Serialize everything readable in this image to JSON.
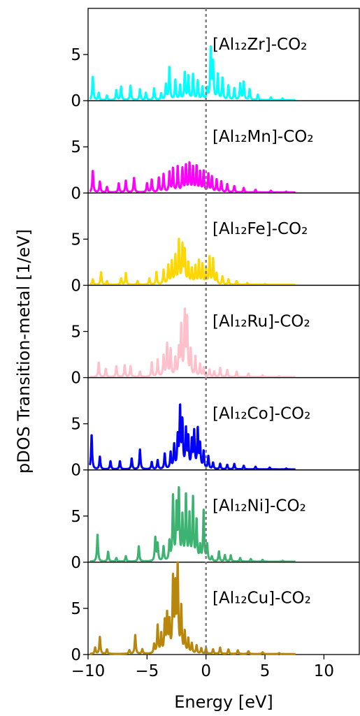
{
  "chart_data": {
    "type": "line",
    "xlabel": "Energy [eV]",
    "ylabel": "pDOS Transition-metal [1/eV]",
    "xlim": [
      -10,
      13
    ],
    "ylim": [
      0,
      10
    ],
    "x_ticks": [
      -10,
      -5,
      0,
      5,
      10
    ],
    "x_tick_labels": [
      "−10",
      "−5",
      "0",
      "5",
      "10"
    ],
    "y_ticks": [
      0,
      5
    ],
    "y_tick_labels": [
      "0",
      "5"
    ],
    "fermi_level": 0,
    "panels": [
      {
        "label": "[Al₁₂Zr]-CO₂",
        "color": "#00ffff",
        "peaks": [
          [
            -9.6,
            2.6
          ],
          [
            -9.1,
            0.8
          ],
          [
            -8.4,
            0.5
          ],
          [
            -7.6,
            1.1
          ],
          [
            -7.2,
            1.5
          ],
          [
            -6.4,
            1.6
          ],
          [
            -5.6,
            1.2
          ],
          [
            -5.1,
            0.8
          ],
          [
            -4.4,
            1.3
          ],
          [
            -3.8,
            0.7
          ],
          [
            -3.4,
            1.7
          ],
          [
            -3.1,
            3.6
          ],
          [
            -2.6,
            2.2
          ],
          [
            -2.2,
            1.6
          ],
          [
            -1.8,
            3.0
          ],
          [
            -1.5,
            2.6
          ],
          [
            -1.1,
            2.8
          ],
          [
            -0.7,
            2.1
          ],
          [
            -0.3,
            1.4
          ],
          [
            0.1,
            1.2
          ],
          [
            0.4,
            5.6
          ],
          [
            0.6,
            4.0
          ],
          [
            1.0,
            2.8
          ],
          [
            1.4,
            2.4
          ],
          [
            1.9,
            1.6
          ],
          [
            2.4,
            1.3
          ],
          [
            2.9,
            1.8
          ],
          [
            3.2,
            2.0
          ],
          [
            3.7,
            1.2
          ],
          [
            4.4,
            0.6
          ],
          [
            5.5,
            0.3
          ],
          [
            6.5,
            0.2
          ]
        ]
      },
      {
        "label": "[Al₁₂Mn]-CO₂",
        "color": "#ff00ff",
        "peaks": [
          [
            -9.6,
            2.4
          ],
          [
            -9.0,
            1.2
          ],
          [
            -8.4,
            0.6
          ],
          [
            -7.4,
            1.0
          ],
          [
            -6.8,
            1.3
          ],
          [
            -6.1,
            1.6
          ],
          [
            -5.0,
            1.0
          ],
          [
            -4.6,
            1.4
          ],
          [
            -4.0,
            1.6
          ],
          [
            -3.6,
            2.0
          ],
          [
            -3.1,
            2.2
          ],
          [
            -2.8,
            2.6
          ],
          [
            -2.4,
            2.8
          ],
          [
            -2.0,
            2.6
          ],
          [
            -1.7,
            2.9
          ],
          [
            -1.4,
            3.1
          ],
          [
            -1.1,
            2.7
          ],
          [
            -0.8,
            2.8
          ],
          [
            -0.5,
            2.2
          ],
          [
            -0.2,
            2.3
          ],
          [
            0.2,
            2.0
          ],
          [
            0.5,
            1.7
          ],
          [
            0.9,
            1.4
          ],
          [
            1.3,
            1.2
          ],
          [
            1.8,
            0.9
          ],
          [
            2.4,
            0.7
          ],
          [
            3.2,
            0.5
          ],
          [
            4.2,
            0.3
          ],
          [
            5.5,
            0.2
          ],
          [
            6.8,
            0.1
          ]
        ]
      },
      {
        "label": "[Al₁₂Fe]-CO₂",
        "color": "#ffd700",
        "peaks": [
          [
            -9.6,
            0.6
          ],
          [
            -8.9,
            1.4
          ],
          [
            -8.4,
            0.4
          ],
          [
            -7.2,
            0.7
          ],
          [
            -6.8,
            1.3
          ],
          [
            -5.8,
            0.4
          ],
          [
            -4.8,
            0.7
          ],
          [
            -4.2,
            1.4
          ],
          [
            -3.6,
            1.6
          ],
          [
            -3.2,
            2.1
          ],
          [
            -2.9,
            2.5
          ],
          [
            -2.6,
            3.1
          ],
          [
            -2.3,
            4.8
          ],
          [
            -2.0,
            4.2
          ],
          [
            -1.8,
            3.6
          ],
          [
            -1.5,
            2.3
          ],
          [
            -1.2,
            1.7
          ],
          [
            -0.9,
            2.0
          ],
          [
            -0.6,
            2.6
          ],
          [
            -0.3,
            2.2
          ],
          [
            0.0,
            1.6
          ],
          [
            0.3,
            3.0
          ],
          [
            0.6,
            2.8
          ],
          [
            0.9,
            1.2
          ],
          [
            1.4,
            0.9
          ],
          [
            1.9,
            0.6
          ],
          [
            2.6,
            0.4
          ],
          [
            3.5,
            0.2
          ],
          [
            5.0,
            0.1
          ]
        ]
      },
      {
        "label": "[Al₁₂Ru]-CO₂",
        "color": "#ffc0cb",
        "peaks": [
          [
            -9.1,
            1.6
          ],
          [
            -8.5,
            0.9
          ],
          [
            -7.6,
            1.2
          ],
          [
            -6.9,
            1.3
          ],
          [
            -6.4,
            1.2
          ],
          [
            -5.6,
            0.6
          ],
          [
            -4.6,
            1.6
          ],
          [
            -4.1,
            1.9
          ],
          [
            -3.6,
            2.3
          ],
          [
            -3.3,
            3.6
          ],
          [
            -3.0,
            3.0
          ],
          [
            -2.6,
            2.0
          ],
          [
            -2.3,
            2.9
          ],
          [
            -2.1,
            5.5
          ],
          [
            -1.8,
            6.9
          ],
          [
            -1.6,
            6.2
          ],
          [
            -1.3,
            2.9
          ],
          [
            -0.9,
            2.2
          ],
          [
            -0.5,
            1.4
          ],
          [
            -0.2,
            1.0
          ],
          [
            0.3,
            0.8
          ],
          [
            0.7,
            0.6
          ],
          [
            1.2,
            1.0
          ],
          [
            1.8,
            0.8
          ],
          [
            2.6,
            0.6
          ],
          [
            3.6,
            0.4
          ],
          [
            4.8,
            0.2
          ],
          [
            6.2,
            0.1
          ]
        ]
      },
      {
        "label": "[Al₁₂Co]-CO₂",
        "color": "#0000ff",
        "peaks": [
          [
            -9.7,
            3.8
          ],
          [
            -9.0,
            1.4
          ],
          [
            -8.1,
            0.9
          ],
          [
            -7.3,
            0.9
          ],
          [
            -6.3,
            1.2
          ],
          [
            -5.6,
            2.2
          ],
          [
            -4.6,
            0.8
          ],
          [
            -4.1,
            1.0
          ],
          [
            -3.5,
            1.7
          ],
          [
            -3.0,
            1.8
          ],
          [
            -2.7,
            2.6
          ],
          [
            -2.4,
            3.4
          ],
          [
            -2.2,
            6.5
          ],
          [
            -2.0,
            5.0
          ],
          [
            -1.7,
            4.2
          ],
          [
            -1.5,
            3.3
          ],
          [
            -1.2,
            3.0
          ],
          [
            -1.0,
            4.0
          ],
          [
            -0.7,
            4.3
          ],
          [
            -0.5,
            2.6
          ],
          [
            -0.2,
            1.9
          ],
          [
            0.2,
            1.4
          ],
          [
            0.6,
            0.7
          ],
          [
            1.2,
            0.6
          ],
          [
            1.8,
            0.5
          ],
          [
            2.4,
            0.6
          ],
          [
            3.2,
            0.4
          ],
          [
            4.2,
            0.3
          ],
          [
            5.4,
            0.2
          ],
          [
            6.8,
            0.1
          ]
        ]
      },
      {
        "label": "[Al₁₂Ni]-CO₂",
        "color": "#3cb371",
        "peaks": [
          [
            -9.2,
            3.0
          ],
          [
            -8.3,
            1.1
          ],
          [
            -7.6,
            0.4
          ],
          [
            -6.8,
            0.6
          ],
          [
            -5.7,
            1.7
          ],
          [
            -4.3,
            2.6
          ],
          [
            -4.1,
            1.9
          ],
          [
            -3.6,
            1.6
          ],
          [
            -3.1,
            2.1
          ],
          [
            -2.8,
            7.1
          ],
          [
            -2.5,
            5.9
          ],
          [
            -2.3,
            7.5
          ],
          [
            -2.0,
            4.8
          ],
          [
            -1.7,
            7.1
          ],
          [
            -1.4,
            5.0
          ],
          [
            -1.1,
            6.9
          ],
          [
            -0.8,
            4.4
          ],
          [
            -0.5,
            1.6
          ],
          [
            -0.2,
            5.6
          ],
          [
            0.1,
            1.8
          ],
          [
            0.5,
            0.5
          ],
          [
            1.1,
            1.1
          ],
          [
            1.6,
            0.7
          ],
          [
            2.1,
            0.7
          ],
          [
            2.9,
            0.4
          ],
          [
            3.8,
            0.3
          ],
          [
            4.8,
            0.2
          ],
          [
            6.5,
            0.1
          ]
        ]
      },
      {
        "label": "[Al₁₂Cu]-CO₂",
        "color": "#b8860b",
        "peaks": [
          [
            -9.4,
            0.7
          ],
          [
            -9.0,
            1.9
          ],
          [
            -8.4,
            0.5
          ],
          [
            -6.5,
            0.4
          ],
          [
            -6.0,
            2.1
          ],
          [
            -5.4,
            0.5
          ],
          [
            -4.4,
            1.0
          ],
          [
            -4.1,
            3.1
          ],
          [
            -3.8,
            2.1
          ],
          [
            -3.5,
            3.4
          ],
          [
            -3.3,
            4.1
          ],
          [
            -3.1,
            3.3
          ],
          [
            -2.8,
            8.0
          ],
          [
            -2.6,
            7.0
          ],
          [
            -2.4,
            9.9
          ],
          [
            -2.1,
            5.0
          ],
          [
            -1.8,
            2.3
          ],
          [
            -1.5,
            1.6
          ],
          [
            -1.2,
            1.1
          ],
          [
            -0.8,
            0.9
          ],
          [
            -0.4,
            0.6
          ],
          [
            0.0,
            0.6
          ],
          [
            0.6,
            0.5
          ],
          [
            1.2,
            0.7
          ],
          [
            1.9,
            0.5
          ],
          [
            2.7,
            0.4
          ],
          [
            3.6,
            0.3
          ],
          [
            4.8,
            0.2
          ],
          [
            6.2,
            0.1
          ]
        ]
      }
    ]
  }
}
